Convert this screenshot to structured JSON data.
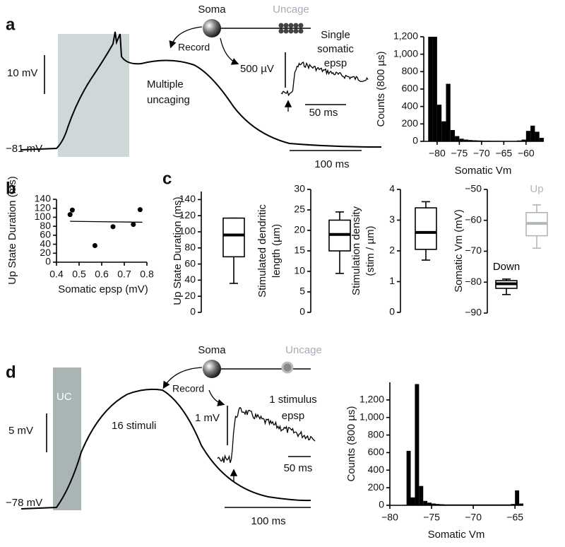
{
  "chart_data": [
    {
      "type": "histogram",
      "ylabel": "Counts (800 µs)",
      "xlabel": "Somatic Vm",
      "color": "#000000",
      "bins": [
        -83,
        -82,
        -81,
        -80,
        -79,
        -78,
        -77,
        -76,
        -75,
        -74,
        -73,
        -72,
        -71,
        -70,
        -69,
        -68,
        -67,
        -66,
        -65,
        -64,
        -63,
        -62,
        -61,
        -60,
        -59,
        -58,
        -57,
        -56
      ],
      "counts": [
        0,
        1200,
        1200,
        420,
        230,
        660,
        130,
        60,
        30,
        20,
        15,
        12,
        10,
        8,
        8,
        6,
        6,
        5,
        5,
        5,
        5,
        10,
        20,
        120,
        180,
        110,
        40
      ],
      "xlim": [
        -83,
        -56
      ],
      "ylim": [
        0,
        1200
      ],
      "xticks": [
        {
          "value": -80,
          "label": "−80"
        },
        {
          "value": -75,
          "label": "−75"
        },
        {
          "value": -70,
          "label": "−70"
        },
        {
          "value": -65,
          "label": "−65"
        },
        {
          "value": -60,
          "label": "−60"
        }
      ],
      "yticks": [
        0,
        200,
        400,
        600,
        800,
        {
          "value": 1000,
          "label": "1,000"
        },
        {
          "value": 1200,
          "label": "1,200"
        }
      ]
    },
    {
      "type": "scatter",
      "ylabel": "Up State Duration (ms)",
      "xlabel": "Somatic epsp (mV)",
      "color": "#000000",
      "x": [
        0.46,
        0.47,
        0.57,
        0.65,
        0.74,
        0.77
      ],
      "values": [
        106,
        116,
        37,
        79,
        84,
        117
      ],
      "fit": {
        "x": [
          0.46,
          0.78
        ],
        "values": [
          91,
          89
        ]
      },
      "xlim": [
        0.4,
        0.8
      ],
      "ylim": [
        0,
        140
      ],
      "xticks": [
        0.4,
        0.5,
        0.6,
        0.7,
        0.8
      ],
      "yticks": [
        0,
        20,
        40,
        60,
        80,
        100,
        120,
        140
      ]
    },
    {
      "type": "box",
      "ylabel": [
        "Up State Duration (ms)"
      ],
      "ylim": [
        0,
        150
      ],
      "yticks": [
        0,
        20,
        40,
        60,
        80,
        100,
        120,
        140
      ],
      "boxes": [
        {
          "color": "#000000",
          "min": 36,
          "q1": 69,
          "median": 96,
          "q3": 117,
          "max": 117
        }
      ]
    },
    {
      "type": "box",
      "ylabel": [
        "Stimulated dendritic",
        "length (µm)"
      ],
      "ylim": [
        0,
        30
      ],
      "yticks": [
        0,
        5,
        10,
        15,
        20,
        25,
        30
      ],
      "boxes": [
        {
          "color": "#000000",
          "min": 9.5,
          "q1": 15,
          "median": 19,
          "q3": 22.5,
          "max": 24.5
        }
      ]
    },
    {
      "type": "box",
      "ylabel": [
        "Stimulation density",
        "(stim / µm)"
      ],
      "ylim": [
        0,
        4
      ],
      "yticks": [
        0,
        1,
        2,
        3,
        4
      ],
      "boxes": [
        {
          "color": "#000000",
          "min": 1.7,
          "q1": 2.05,
          "median": 2.6,
          "q3": 3.4,
          "max": 3.6
        }
      ]
    },
    {
      "type": "box",
      "ylabel": [
        "Somatic Vm (mV)"
      ],
      "ylim": [
        -90,
        -50
      ],
      "yticks": [
        {
          "value": -90,
          "label": "−90"
        },
        {
          "value": -80,
          "label": "−80"
        },
        {
          "value": -70,
          "label": "−70"
        },
        {
          "value": -60,
          "label": "−60"
        },
        {
          "value": -50,
          "label": "−50"
        }
      ],
      "boxes": [
        {
          "name": "Down",
          "color": "#000000",
          "min": -84,
          "q1": -82,
          "median": -80.5,
          "q3": -79.5,
          "max": -79
        },
        {
          "name": "Up",
          "color": "#b0b8b8",
          "min": -69,
          "q1": -65,
          "median": -61,
          "q3": -57.5,
          "max": -55
        }
      ]
    },
    {
      "type": "histogram",
      "ylabel": "Counts (800 µs)",
      "xlabel": "Somatic Vm",
      "color": "#000000",
      "bins": [
        -79.5,
        -79,
        -78.5,
        -78,
        -77.5,
        -77,
        -76.5,
        -76,
        -75.5,
        -75,
        -74.5,
        -74,
        -73.5,
        -73,
        -72.5,
        -72,
        -71.5,
        -71,
        -70.5,
        -70,
        -69.5,
        -69,
        -68.5,
        -68,
        -67.5,
        -67,
        -66.5,
        -66,
        -65.5,
        -65,
        -64.5,
        -64
      ],
      "counts": [
        0,
        0,
        5,
        620,
        90,
        1380,
        220,
        50,
        30,
        20,
        15,
        12,
        10,
        10,
        10,
        10,
        10,
        10,
        10,
        10,
        10,
        10,
        10,
        10,
        10,
        10,
        10,
        10,
        15,
        170,
        20
      ],
      "xlim": [
        -80,
        -64
      ],
      "ylim": [
        0,
        1400
      ],
      "xticks": [
        {
          "value": -80,
          "label": "−80"
        },
        {
          "value": -75,
          "label": "−75"
        },
        {
          "value": -70,
          "label": "−70"
        },
        {
          "value": -65,
          "label": "−65"
        }
      ],
      "yticks": [
        0,
        200,
        400,
        600,
        800,
        {
          "value": 1000,
          "label": "1,000"
        },
        {
          "value": 1200,
          "label": "1,200"
        }
      ]
    }
  ],
  "panel_labels": [
    "a",
    "b",
    "c",
    "d"
  ],
  "trace_a": {
    "scale_y": "10 mV",
    "baseline": "−81 mV",
    "scale_x": "100 ms",
    "text": [
      "Multiple",
      "uncaging"
    ],
    "soma": "Soma",
    "uncage": "Uncage",
    "record": "Record",
    "inset_scale_y": "500 µV",
    "inset_scale_x": "50 ms",
    "inset_title": [
      "Single",
      "somatic",
      "epsp"
    ]
  },
  "trace_d": {
    "box_label": "UC",
    "scale_y": "5 mV",
    "baseline": "−78 mV",
    "scale_x": "100 ms",
    "text": "16 stimuli",
    "soma": "Soma",
    "uncage": "Uncage",
    "record": "Record",
    "inset_scale_y": "1 mV",
    "inset_scale_x": "50 ms",
    "inset_title": [
      "1 stimulus",
      "epsp"
    ]
  }
}
